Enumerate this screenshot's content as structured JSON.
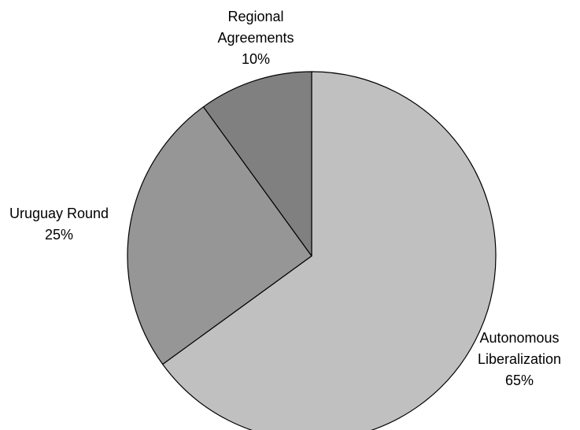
{
  "chart_data": {
    "type": "pie",
    "title": "",
    "start_angle_deg": 0,
    "direction": "clockwise",
    "slices": [
      {
        "name_lines": [
          "Autonomous",
          "Liberalization"
        ],
        "percent_label": "65%",
        "value": 65,
        "color": "#c0c0c0"
      },
      {
        "name_lines": [
          "Uruguay Round"
        ],
        "percent_label": "25%",
        "value": 25,
        "color": "#969696"
      },
      {
        "name_lines": [
          "Regional",
          "Agreements"
        ],
        "percent_label": "10%",
        "value": 10,
        "color": "#808080"
      }
    ],
    "legend": "none",
    "outline_color": "#000000"
  }
}
